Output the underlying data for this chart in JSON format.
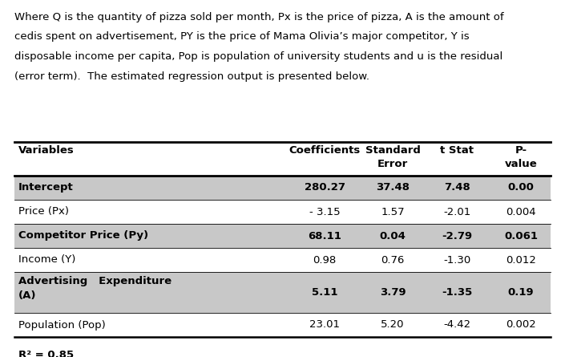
{
  "paragraph": "Where Q is the quantity of pizza sold per month, Px is the price of pizza, A is the amount of cedis spent on advertisement, PY is the price of Mama Olivia’s major competitor, Y is disposable income per capita, Pop is population of university students and u is the residual (error term).  The estimated regression output is presented below.",
  "rows": [
    {
      "label": "Intercept",
      "coef": "280.27",
      "se": "37.48",
      "tstat": "7.48",
      "pval": "0.00",
      "bold": true,
      "shaded": true
    },
    {
      "label": "Price (Px)",
      "coef": "- 3.15",
      "se": "1.57",
      "tstat": "-2.01",
      "pval": "0.004",
      "bold": false,
      "shaded": false
    },
    {
      "label": "Competitor Price (Py)",
      "coef": "68.11",
      "se": "0.04",
      "tstat": "-2.79",
      "pval": "0.061",
      "bold": true,
      "shaded": true
    },
    {
      "label": "Income (Y)",
      "coef": "0.98",
      "se": "0.76",
      "tstat": "-1.30",
      "pval": "0.012",
      "bold": false,
      "shaded": false
    },
    {
      "label": "Advertising   Expenditure\n(A)",
      "coef": "5.11",
      "se": "3.79",
      "tstat": "-1.35",
      "pval": "0.19",
      "bold": true,
      "shaded": true
    },
    {
      "label": "Population (Pop)",
      "coef": "23.01",
      "se": "5.20",
      "tstat": "-4.42",
      "pval": "0.002",
      "bold": false,
      "shaded": false
    }
  ],
  "footer": "R² = 0.85",
  "shaded_color": "#c8c8c8",
  "bg_color": "#ffffff",
  "font_size": 9.5,
  "para_font_size": 9.5
}
